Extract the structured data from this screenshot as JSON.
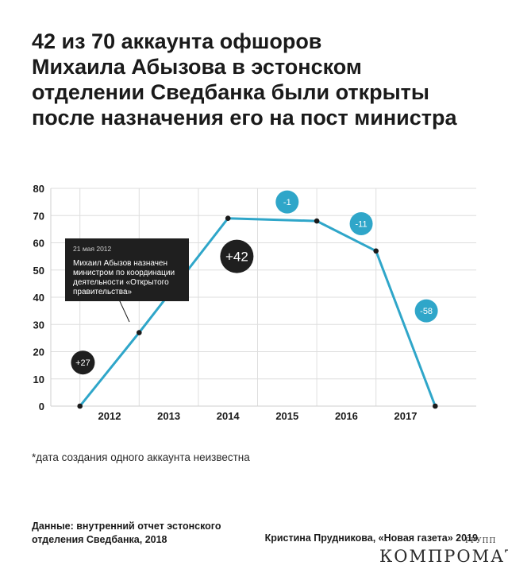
{
  "title_lines": [
    "42 из 70 аккаунта офшоров",
    "Михаила Абызова в эстонском",
    "отделении Сведбанка были открыты",
    "после назначения его на пост министра"
  ],
  "chart_data": {
    "type": "line",
    "y_ticks": [
      "0",
      "10",
      "20",
      "30",
      "40",
      "50",
      "60",
      "70",
      "80"
    ],
    "ylim": [
      0,
      80
    ],
    "categories": [
      "2012",
      "2013",
      "2014",
      "2015",
      "2016",
      "2017"
    ],
    "points": [
      {
        "x": 2011.5,
        "y": 0
      },
      {
        "x": 2012.5,
        "y": 27
      },
      {
        "x": 2014.0,
        "y": 69
      },
      {
        "x": 2015.5,
        "y": 68
      },
      {
        "x": 2016.5,
        "y": 57
      },
      {
        "x": 2017.5,
        "y": 0
      }
    ],
    "grid": true,
    "line_color": "#2fa6c9",
    "badges": [
      {
        "label": "+27",
        "x": 2011.55,
        "y": 16,
        "style": "dark"
      },
      {
        "label": "+42",
        "x": 2014.15,
        "y": 55,
        "style": "dark"
      },
      {
        "label": "-1",
        "x": 2015.0,
        "y": 75,
        "style": "blue"
      },
      {
        "label": "-11",
        "x": 2016.25,
        "y": 67,
        "style": "blue"
      },
      {
        "label": "-58",
        "x": 2017.35,
        "y": 35,
        "style": "blue"
      }
    ],
    "annotation": {
      "date": "21 мая 2012",
      "lines": [
        "Михаил Абызов назначен",
        "министром по координации",
        "деятельности «Открытого",
        "правительства»"
      ]
    }
  },
  "footnote": "*дата создания одного аккаунта неизвестна",
  "source_lines": [
    "Данные: внутренний отчет эстонского",
    "отделения Сведбанка, 2018"
  ],
  "author": "Кристина Прудникова, «Новая газета» 2019",
  "watermark": {
    "main": "КОМПРОМАТ",
    "sub": "ГРУПП"
  },
  "colors": {
    "accent": "#2fa6c9",
    "dark": "#1f1f1f",
    "grid": "#dedede"
  }
}
